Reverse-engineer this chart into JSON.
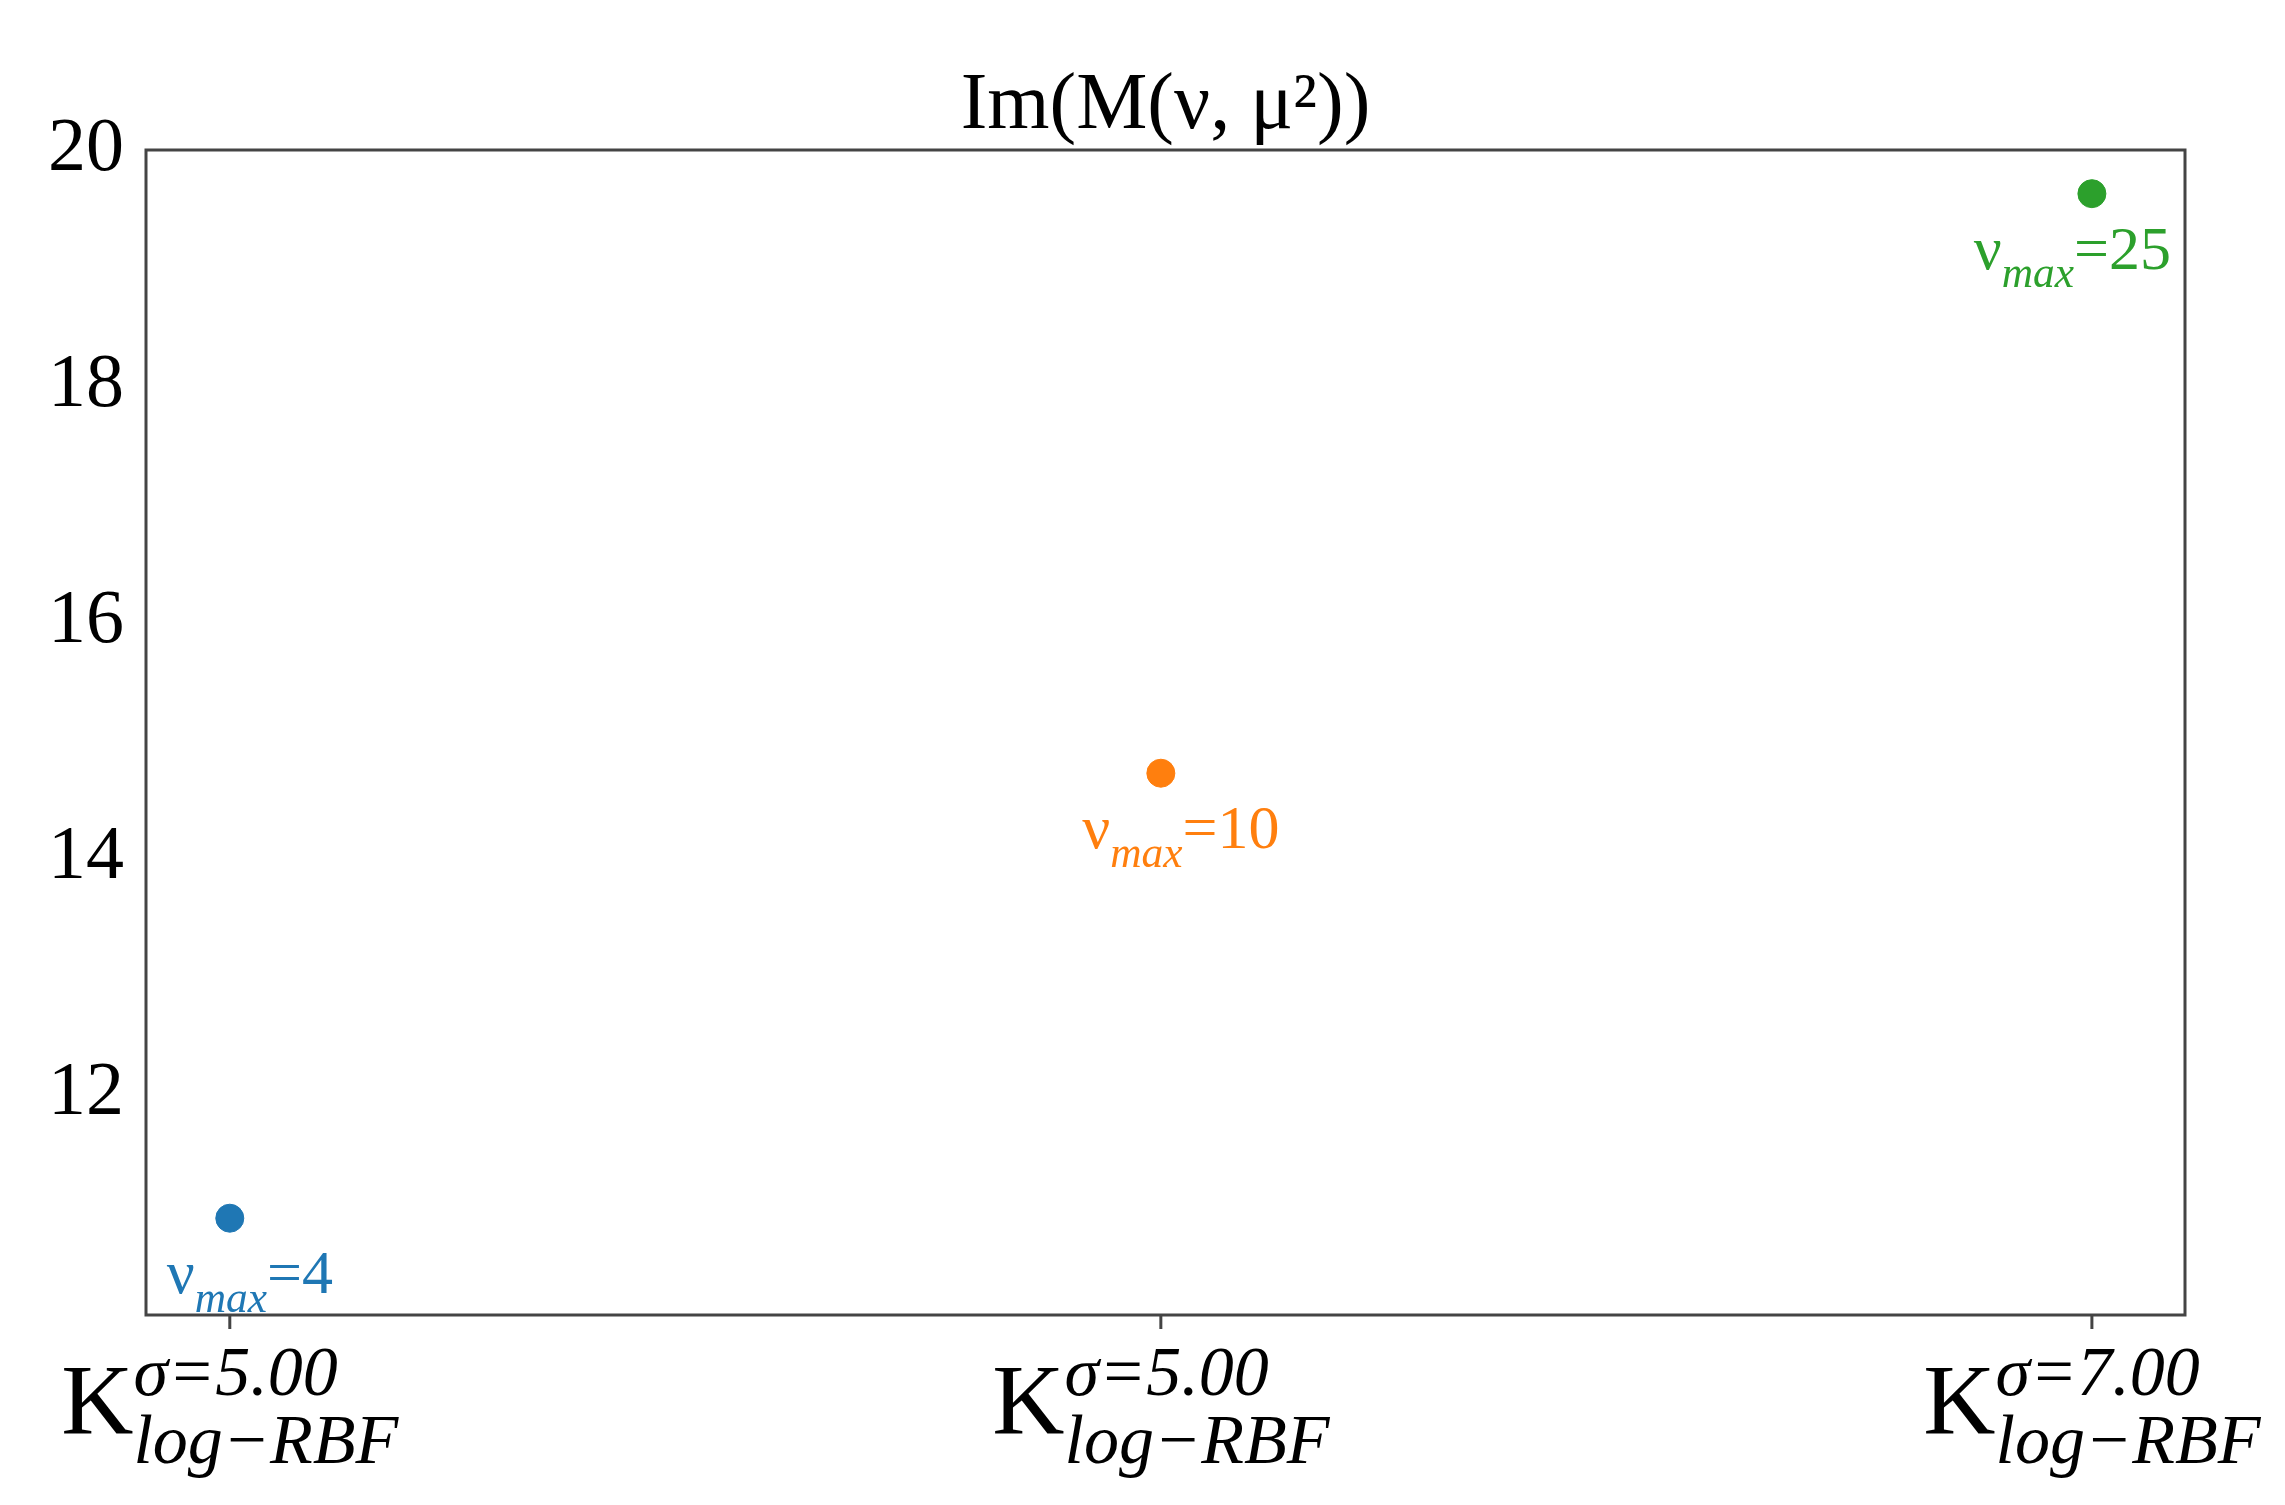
{
  "chart_data": {
    "type": "scatter",
    "title": "Im(M(ν, μ²))",
    "categories": [
      "K$^{σ=5.00}$$_{log−RBF}$",
      "K$^{σ=5.00}$$_{log−RBF}$",
      "K$^{σ=7.00}$$_{log−RBF}$"
    ],
    "series": [
      {
        "name": "ν$_{max}$=4",
        "color": "#1f77b4",
        "values": [
          10.95,
          null,
          null
        ]
      },
      {
        "name": "ν$_{max}$=10",
        "color": "#ff7f0e",
        "values": [
          null,
          14.72,
          null
        ]
      },
      {
        "name": "ν$_{max}$=25",
        "color": "#2ca02c",
        "values": [
          null,
          null,
          19.63
        ]
      }
    ],
    "ylim": [
      10.13,
      20
    ],
    "yticks": [
      12,
      14,
      16,
      18,
      20
    ],
    "grid": false,
    "legend": false,
    "marker": "circle"
  }
}
